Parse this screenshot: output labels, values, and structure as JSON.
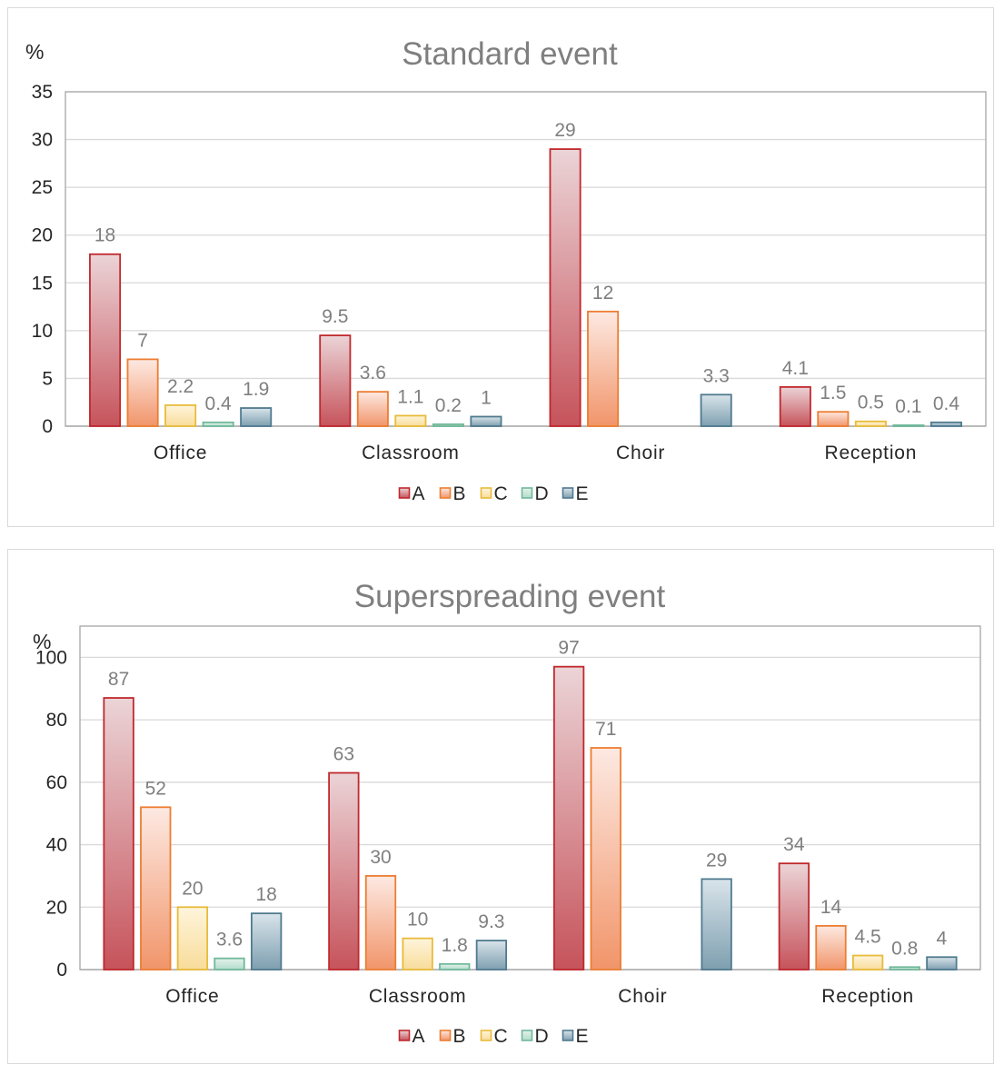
{
  "chart_data": [
    {
      "type": "bar",
      "title": "Standard event",
      "ylabel": "%",
      "ylim": [
        0,
        35
      ],
      "yticks": [
        0,
        5,
        10,
        15,
        20,
        25,
        30,
        35
      ],
      "grid": true,
      "legend_position": "bottom",
      "categories": [
        "Office",
        "Classroom",
        "Choir",
        "Reception"
      ],
      "series": [
        {
          "name": "A",
          "values": [
            18,
            9.5,
            29,
            4.1
          ]
        },
        {
          "name": "B",
          "values": [
            7,
            3.6,
            12,
            1.5
          ]
        },
        {
          "name": "C",
          "values": [
            2.2,
            1.1,
            null,
            0.5
          ]
        },
        {
          "name": "D",
          "values": [
            0.4,
            0.2,
            null,
            0.1
          ]
        },
        {
          "name": "E",
          "values": [
            1.9,
            1,
            3.3,
            0.4
          ]
        }
      ]
    },
    {
      "type": "bar",
      "title": "Superspreading event",
      "ylabel": "%",
      "ylim": [
        0,
        110
      ],
      "yticks": [
        0,
        20,
        40,
        60,
        80,
        100
      ],
      "grid": true,
      "legend_position": "bottom",
      "categories": [
        "Office",
        "Classroom",
        "Choir",
        "Reception"
      ],
      "series": [
        {
          "name": "A",
          "values": [
            87,
            63,
            97,
            34
          ]
        },
        {
          "name": "B",
          "values": [
            52,
            30,
            71,
            14
          ]
        },
        {
          "name": "C",
          "values": [
            20,
            10,
            null,
            4.5
          ]
        },
        {
          "name": "D",
          "values": [
            3.6,
            1.8,
            null,
            0.8
          ]
        },
        {
          "name": "E",
          "values": [
            18,
            9.3,
            29,
            4
          ]
        }
      ]
    }
  ],
  "colors": {
    "A": {
      "border": "#c0282d",
      "top": "#ebd4d7",
      "bottom": "#c6535b"
    },
    "B": {
      "border": "#ed7d31",
      "top": "#fde9e2",
      "bottom": "#f1956a"
    },
    "C": {
      "border": "#e8bb3a",
      "top": "#fff5dc",
      "bottom": "#f8dc9a"
    },
    "D": {
      "border": "#70b89a",
      "top": "#e4f2ec",
      "bottom": "#b2dccb"
    },
    "E": {
      "border": "#4f7a8f",
      "top": "#d9e4ea",
      "bottom": "#7e9fb0"
    }
  }
}
